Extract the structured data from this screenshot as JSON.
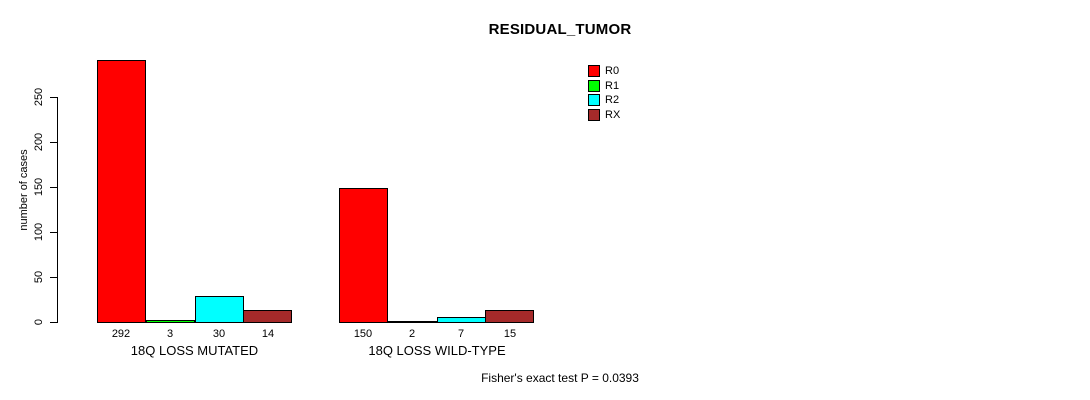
{
  "chart_data": {
    "type": "bar",
    "title": "RESIDUAL_TUMOR",
    "ylabel": "number of cases",
    "xlabel": "",
    "categories": [
      "18Q LOSS MUTATED",
      "18Q LOSS WILD-TYPE"
    ],
    "series": [
      {
        "name": "R0",
        "color": "#ff0000",
        "values": [
          292,
          150
        ]
      },
      {
        "name": "R1",
        "color": "#00ff00",
        "values": [
          3,
          2
        ]
      },
      {
        "name": "R2",
        "color": "#00ffff",
        "values": [
          30,
          7
        ]
      },
      {
        "name": "RX",
        "color": "#a52a2a",
        "values": [
          14,
          15
        ]
      }
    ],
    "yticks": [
      0,
      50,
      100,
      150,
      200,
      250
    ],
    "ylim": [
      0,
      292
    ],
    "grid": false,
    "bar_border_color": "#000000",
    "legend_position": "inner-top-right",
    "annotation": "Fisher's exact test P = 0.0393",
    "p_value": "0.0393"
  }
}
